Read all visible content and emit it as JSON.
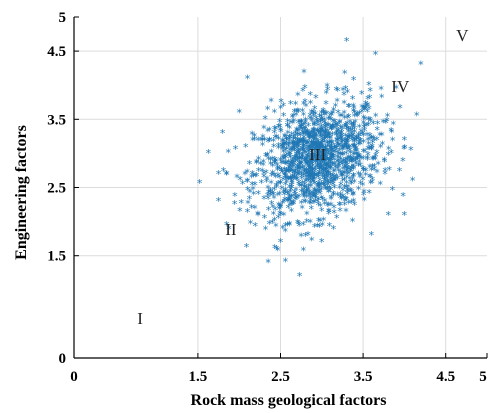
{
  "chart_data": {
    "type": "scatter",
    "xlabel": "Rock mass geological factors",
    "ylabel": "Engineering factors",
    "xlim": [
      0,
      5
    ],
    "ylim": [
      0,
      5
    ],
    "grid": true,
    "x_ticks": [
      "0",
      "1.5",
      "2.5",
      "3.5",
      "4.5",
      "5"
    ],
    "y_ticks": [
      "0",
      "1.5",
      "2.5",
      "3.5",
      "4.5",
      "5"
    ],
    "x_tick_values": [
      0,
      1.5,
      2.5,
      3.5,
      4.5,
      5
    ],
    "y_tick_values": [
      0,
      1.5,
      2.5,
      3.5,
      4.5,
      5
    ],
    "marker": "*",
    "marker_color": "#1f77b4",
    "regions": [
      {
        "label": "I",
        "x": 0.8,
        "y": 0.5
      },
      {
        "label": "II",
        "x": 1.9,
        "y": 1.8
      },
      {
        "label": "III",
        "x": 2.95,
        "y": 2.9
      },
      {
        "label": "IV",
        "x": 3.95,
        "y": 3.9
      },
      {
        "label": "V",
        "x": 4.7,
        "y": 4.65
      }
    ],
    "series": [
      {
        "distribution": "bivariate-normal",
        "count": 1400,
        "mean": [
          2.95,
          2.9
        ],
        "std": [
          0.38,
          0.42
        ],
        "correlation": 0.25,
        "points": [
          [
            2.35,
            1.4
          ],
          [
            3.3,
            4.65
          ],
          [
            3.65,
            4.45
          ],
          [
            4.2,
            4.3
          ],
          [
            2.1,
            4.1
          ],
          [
            2.15,
            2.2
          ],
          [
            1.75,
            2.3
          ],
          [
            1.85,
            1.95
          ],
          [
            2.45,
            1.6
          ],
          [
            2.5,
            1.7
          ],
          [
            3.6,
            1.8
          ],
          [
            3.0,
            1.7
          ],
          [
            4.0,
            2.1
          ],
          [
            4.1,
            2.6
          ],
          [
            1.75,
            2.7
          ],
          [
            1.8,
            3.3
          ],
          [
            2.0,
            3.6
          ],
          [
            3.9,
            3.95
          ],
          [
            4.0,
            3.2
          ]
        ]
      }
    ]
  }
}
